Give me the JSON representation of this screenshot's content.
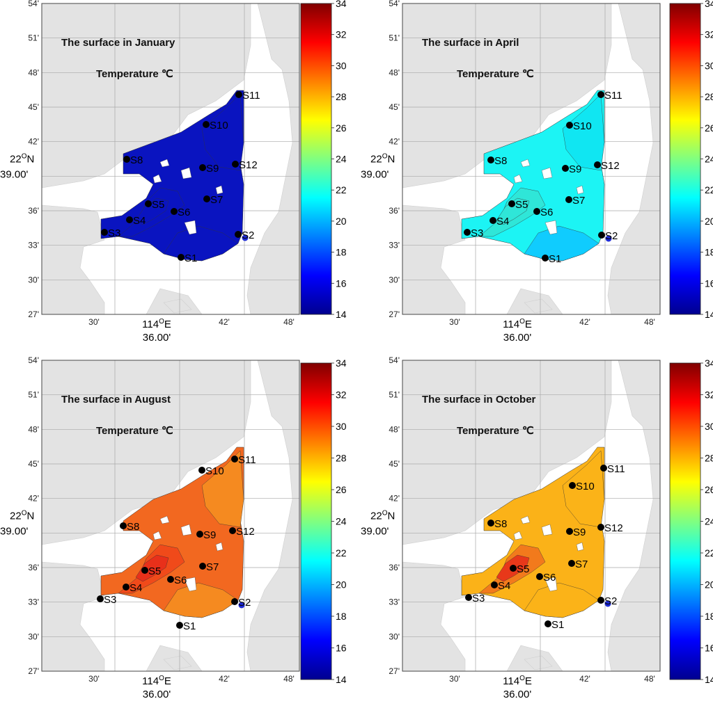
{
  "color_scale": {
    "min": 14,
    "max": 34,
    "ticks": [
      "14",
      "16",
      "18",
      "20",
      "22",
      "24",
      "26",
      "28",
      "30",
      "32",
      "34"
    ],
    "stops": [
      "#00008f",
      "#0000ff",
      "#0080ff",
      "#00ffff",
      "#80ff80",
      "#ffff00",
      "#ff8000",
      "#ff0000",
      "#800000"
    ]
  },
  "axes": {
    "y_ticks": [
      "54'",
      "51'",
      "48'",
      "45'",
      "42'",
      "39.00'",
      "36'",
      "33'",
      "30'",
      "27'"
    ],
    "x_ticks": [
      "30'",
      "36.00'",
      "42'",
      "48'"
    ],
    "lat_label_deg": "22",
    "lat_label_sup": "O",
    "lat_label_hem": "N",
    "lon_label_deg": "114",
    "lon_label_sup": "O",
    "lon_label_hem": "E"
  },
  "legend_colors": {
    "land": "#e3e3e3",
    "grid": "#a8a8a8",
    "station": "#000000",
    "s2_marker": "#1e2bd6"
  },
  "panels": [
    {
      "title": "The surface in January",
      "subtitle": "Temperature ℃",
      "base_color": "#0a14c0",
      "hot_color": "#0a14c0",
      "hot2_color": "#0a14c0",
      "bay_color": "#0a14c0",
      "ne_color": "#0a14c0",
      "stations": [
        "S1",
        "S2",
        "S3",
        "S4",
        "S5",
        "S6",
        "S7",
        "S8",
        "S9",
        "S10",
        "S11",
        "S12"
      ]
    },
    {
      "title": "The surface in April",
      "subtitle": "Temperature ℃",
      "base_color": "#1cf4f4",
      "hot_color": "#2fe6d8",
      "hot2_color": "#2fe6d8",
      "bay_color": "#10c8ff",
      "ne_color": "#10e4f2",
      "stations": [
        "S1",
        "S2",
        "S3",
        "S4",
        "S5",
        "S6",
        "S7",
        "S8",
        "S9",
        "S10",
        "S11",
        "S12"
      ]
    },
    {
      "title": "The surface in August",
      "subtitle": "Temperature ℃",
      "base_color": "#f26820",
      "hot_color": "#f04a1a",
      "hot2_color": "#e8301a",
      "bay_color": "#f58e20",
      "ne_color": "#f58e20",
      "stations": [
        "S1",
        "S2",
        "S3",
        "S4",
        "S5",
        "S6",
        "S7",
        "S8",
        "S9",
        "S10",
        "S11",
        "S12"
      ]
    },
    {
      "title": "The surface in October",
      "subtitle": "Temperature ℃",
      "base_color": "#fbb218",
      "hot_color": "#f27a1c",
      "hot2_color": "#e8381a",
      "bay_color": "#fbb218",
      "ne_color": "#fbb218",
      "stations": [
        "S1",
        "S2",
        "S3",
        "S4",
        "S5",
        "S6",
        "S7",
        "S8",
        "S9",
        "S10",
        "S11",
        "S12"
      ]
    }
  ]
}
